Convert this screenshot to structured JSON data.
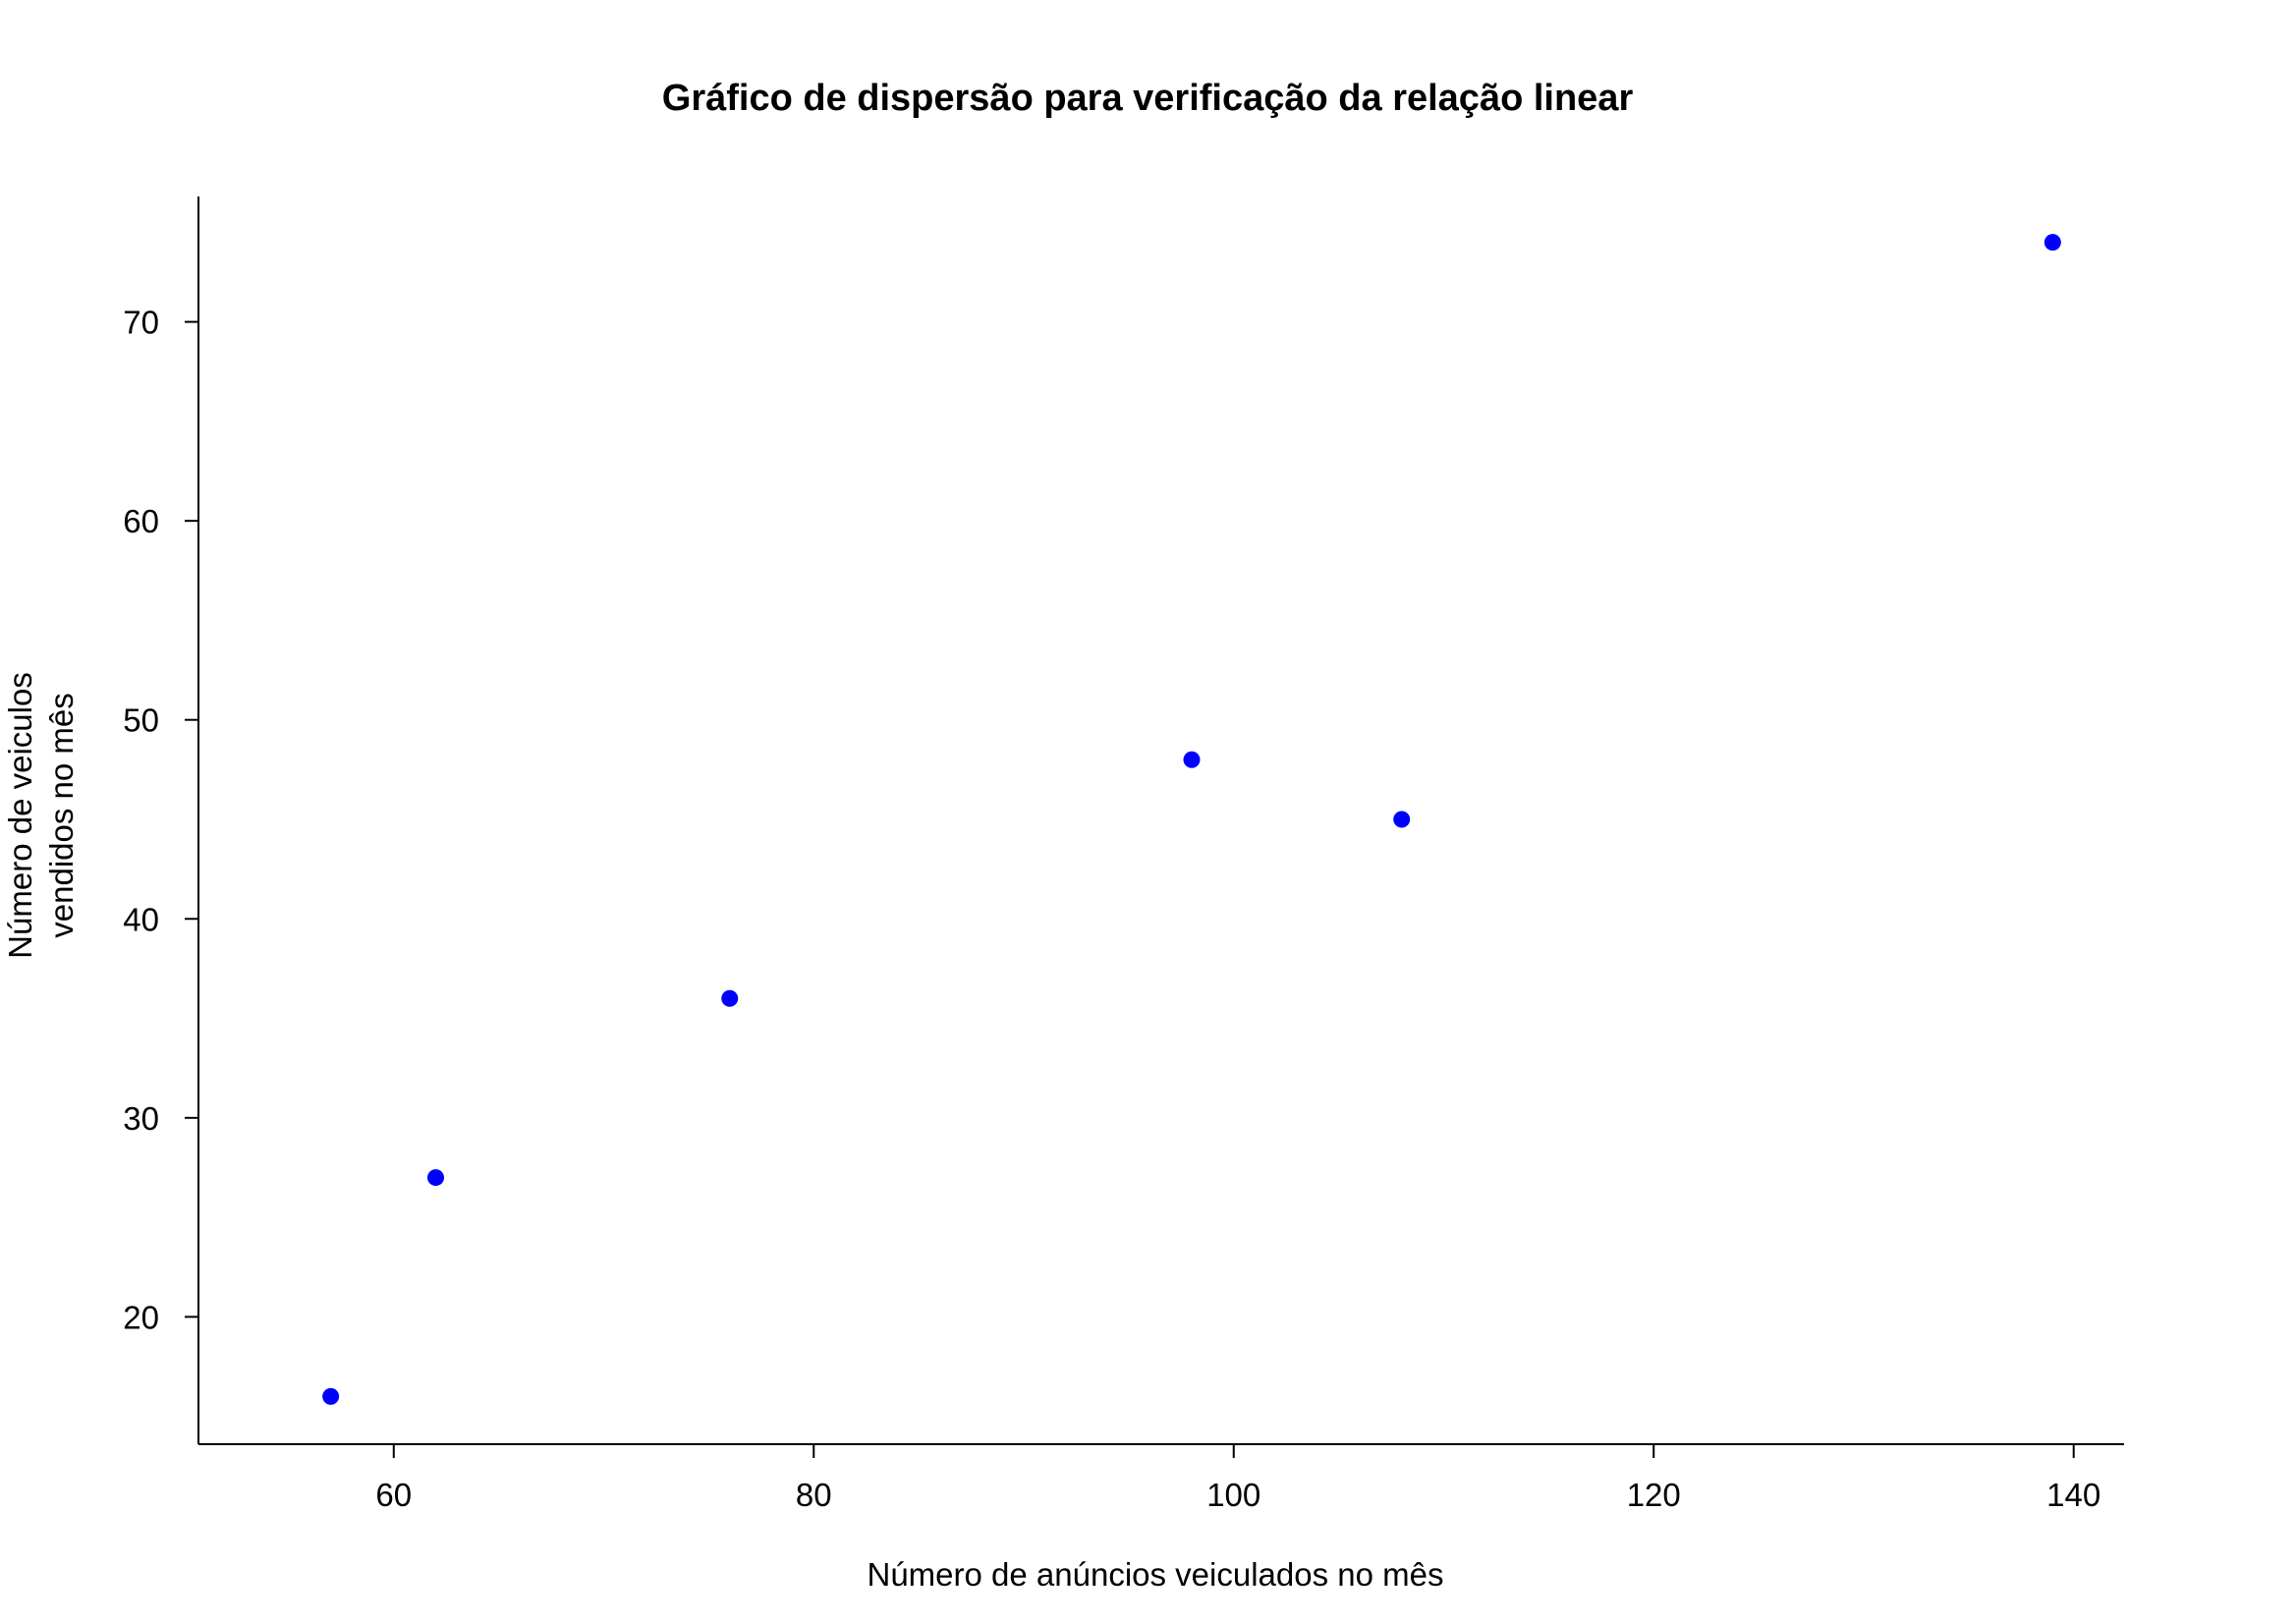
{
  "chart_data": {
    "type": "scatter",
    "title": "Gráfico de dispersão para verificação da relação linear",
    "xlabel": "Número de anúncios veiculados no mês",
    "ylabel_lines": [
      "Número de veiculos",
      "vendidos no mês"
    ],
    "x": [
      57,
      62,
      76,
      98,
      108,
      139
    ],
    "y": [
      16,
      27,
      36,
      48,
      45,
      74
    ],
    "xlim": [
      50.7,
      142.4
    ],
    "ylim": [
      13.6,
      76.3
    ],
    "xticks": [
      60,
      80,
      100,
      120,
      140
    ],
    "yticks": [
      20,
      30,
      40,
      50,
      60,
      70
    ],
    "point_color": "#0000ff",
    "grid": false,
    "axes": "left-bottom"
  }
}
